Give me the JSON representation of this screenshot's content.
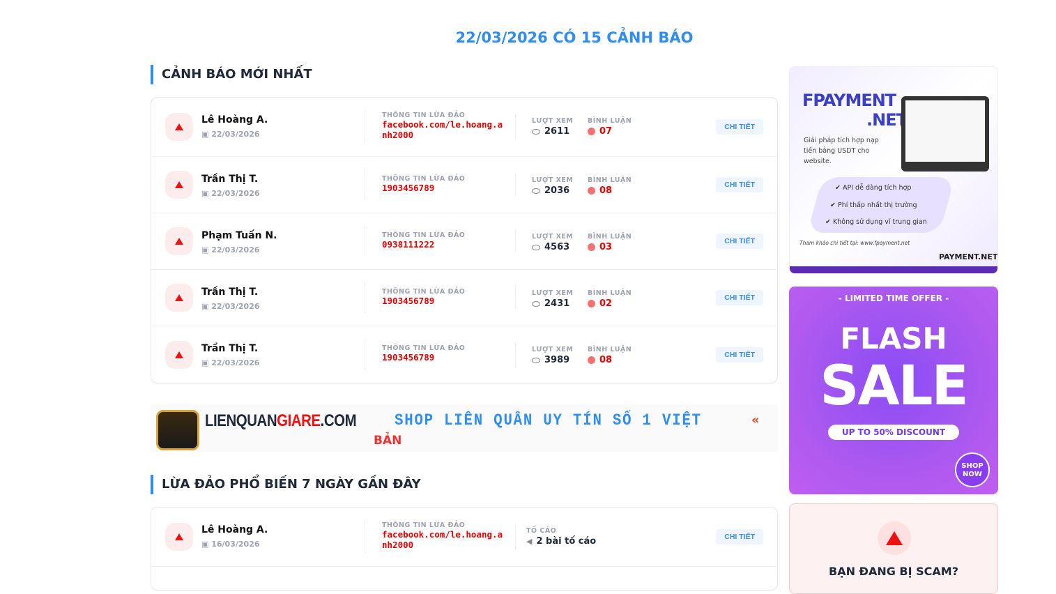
{
  "header": {
    "title": "22/03/2026 CÓ 15 CẢNH BÁO"
  },
  "latest": {
    "title": "CẢNH BÁO MỚI NHẤT",
    "info_label": "THÔNG TIN LỪA ĐẢO",
    "views_label": "LƯỢT XEM",
    "comments_label": "BÌNH LUẬN",
    "detail_label": "CHI TIẾT",
    "rows": [
      {
        "name": "Lê Hoàng A.",
        "date": "22/03/2026",
        "info": "facebook.com/le.hoang.anh2000",
        "views": "2611",
        "comments": "07"
      },
      {
        "name": "Trần Thị T.",
        "date": "22/03/2026",
        "info": "1903456789",
        "views": "2036",
        "comments": "08"
      },
      {
        "name": "Phạm Tuấn N.",
        "date": "22/03/2026",
        "info": "0938111222",
        "views": "4563",
        "comments": "03"
      },
      {
        "name": "Trần Thị T.",
        "date": "22/03/2026",
        "info": "1903456789",
        "views": "2431",
        "comments": "02"
      },
      {
        "name": "Trần Thị T.",
        "date": "22/03/2026",
        "info": "1903456789",
        "views": "3989",
        "comments": "08"
      }
    ]
  },
  "banner": {
    "logo_a": "LIENQUAN",
    "logo_b": "GIARE",
    "logo_c": ".COM",
    "slogan": "SHOP LIÊN QUÂN UY TÍN SỐ 1 VIỆT",
    "slogan2": "BẢN"
  },
  "popular": {
    "title": "LỪA ĐẢO PHỔ BIẾN 7 NGÀY GẦN ĐÂY",
    "report_label": "TỐ CÁO",
    "rows": [
      {
        "name": "Lê Hoàng A.",
        "date": "16/03/2026",
        "info": "facebook.com/le.hoang.anh2000",
        "reports": "2 bài tố cáo"
      }
    ]
  },
  "ads": {
    "fpay_title": "FPAYMENT",
    "fpay_net": ".NET",
    "fpay_desc": "Giải pháp tích hợp nạp tiền bằng USDT cho website.",
    "fpay_features": [
      "API dễ dàng tích hợp",
      "Phí thấp nhất thị trường",
      "Không sử dụng ví trung gian"
    ],
    "fpay_foot": "Tham khảo chi tiết tại: www.fpayment.net",
    "fpay_logo": "PAYMENT.NET",
    "flash_top": "- LIMITED TIME OFFER -",
    "flash_1": "FLASH",
    "flash_2": "SALE",
    "flash_disc": "UP TO 50% DISCOUNT",
    "flash_shop": "SHOP NOW"
  },
  "scam": {
    "title": "BẠN ĐANG BỊ SCAM?"
  }
}
